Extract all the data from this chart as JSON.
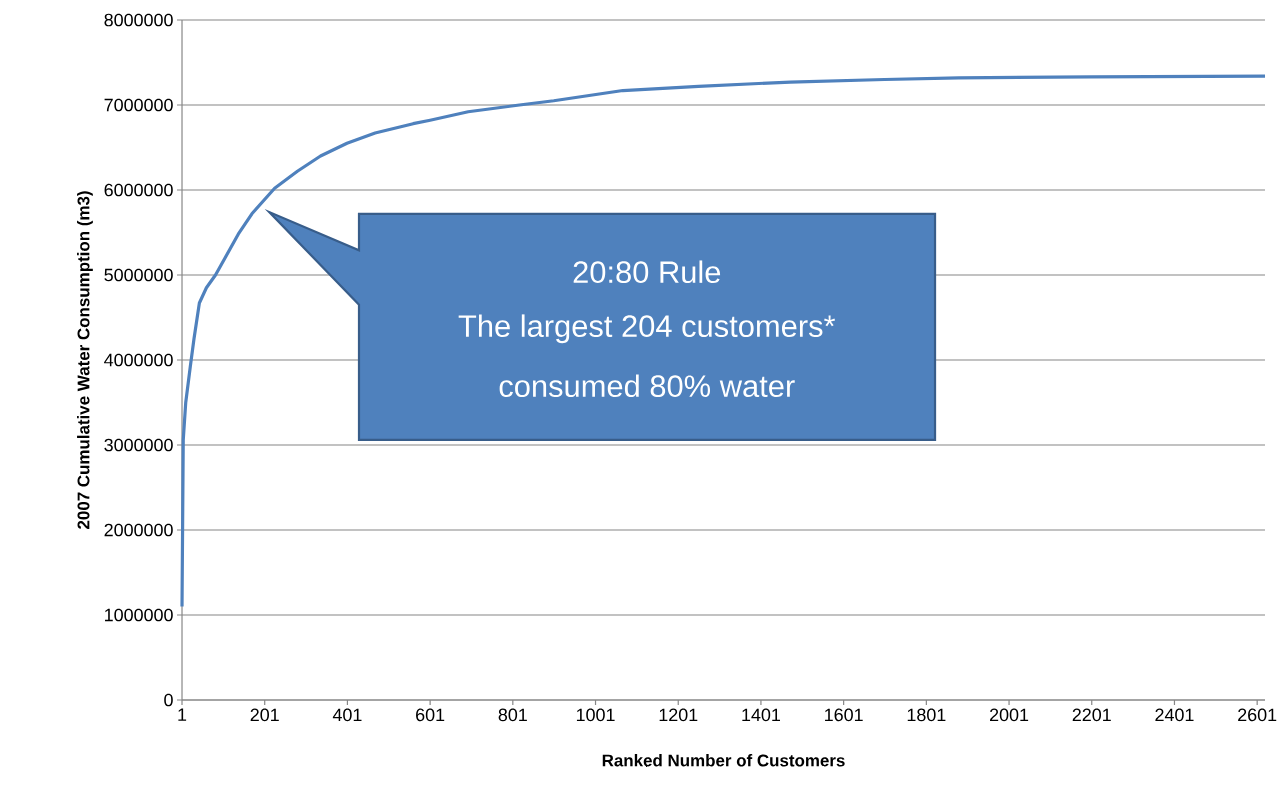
{
  "chart_data": {
    "type": "line",
    "xlabel": "Ranked Number of Customers",
    "ylabel": "2007 Cumulative Water Consumption (m3)",
    "x": [
      1,
      4,
      10,
      21,
      30,
      43,
      60,
      82,
      105,
      137,
      170,
      225,
      280,
      336,
      400,
      468,
      560,
      601,
      693,
      817,
      900,
      1067,
      1250,
      1472,
      1700,
      1879,
      2200,
      2620
    ],
    "series": [
      {
        "color": "#4f81bd",
        "values": [
          1100000,
          3060000,
          3500000,
          3920000,
          4250000,
          4670000,
          4850000,
          5000000,
          5200000,
          5480000,
          5720000,
          6020000,
          6220000,
          6400000,
          6550000,
          6670000,
          6780000,
          6820000,
          6920000,
          7000000,
          7050000,
          7170000,
          7220000,
          7270000,
          7300000,
          7320000,
          7330000,
          7340000
        ]
      }
    ],
    "xlim": [
      1,
      2620
    ],
    "ylim": [
      0,
      8000000
    ],
    "xticks": [
      1,
      201,
      401,
      601,
      801,
      1001,
      1201,
      1401,
      1601,
      1801,
      2001,
      2201,
      2401,
      2601
    ],
    "yticks": [
      0,
      1000000,
      2000000,
      3000000,
      4000000,
      5000000,
      6000000,
      7000000,
      8000000
    ],
    "grid": "y",
    "annotations": [
      "20:80 Rule",
      "The largest 204 customers*",
      "consumed 80% water"
    ]
  }
}
